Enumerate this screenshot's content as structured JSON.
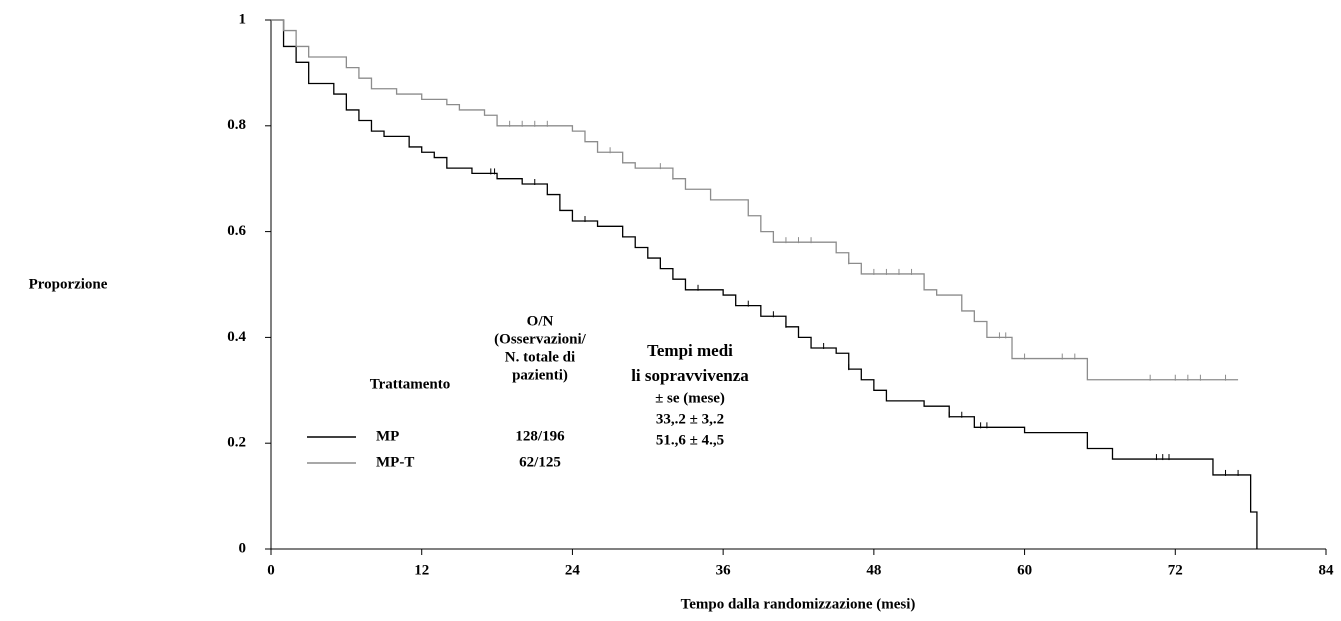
{
  "chart_data": {
    "type": "line",
    "step": "post",
    "y_label": "Proporzione",
    "x_label": "Tempo dalla randomizzazione (mesi)",
    "xlim": [
      0,
      84
    ],
    "xticks": [
      0,
      12,
      24,
      36,
      48,
      60,
      72,
      84
    ],
    "ylim": [
      0,
      1
    ],
    "yticks": [
      0,
      0.2,
      0.4,
      0.6,
      0.8,
      1
    ],
    "series": [
      {
        "name": "MP",
        "color": "#000000",
        "x": [
          0,
          1,
          2,
          3,
          5,
          6,
          7,
          8,
          9,
          11,
          12,
          13,
          14,
          16,
          18,
          20,
          22,
          23,
          24,
          26,
          28,
          29,
          30,
          31,
          32,
          33,
          36,
          37,
          39,
          41,
          42,
          43,
          45,
          46,
          47,
          48,
          49,
          52,
          54,
          56,
          60,
          65,
          67,
          75,
          78,
          78.5,
          78.5
        ],
        "values": [
          1,
          0.95,
          0.92,
          0.88,
          0.86,
          0.83,
          0.81,
          0.79,
          0.78,
          0.76,
          0.75,
          0.74,
          0.72,
          0.71,
          0.7,
          0.69,
          0.67,
          0.64,
          0.62,
          0.61,
          0.59,
          0.57,
          0.55,
          0.53,
          0.51,
          0.49,
          0.48,
          0.46,
          0.44,
          0.42,
          0.4,
          0.38,
          0.37,
          0.34,
          0.32,
          0.3,
          0.28,
          0.27,
          0.25,
          0.23,
          0.22,
          0.19,
          0.17,
          0.14,
          0.07,
          0.07,
          0
        ],
        "censor_x": [
          17.5,
          17.8,
          21,
          25,
          34,
          38,
          40,
          41,
          44,
          46,
          54,
          55,
          56.5,
          57,
          70.5,
          71,
          71.5,
          76,
          77
        ]
      },
      {
        "name": "MP-T",
        "color": "#8c8c8c",
        "x": [
          0,
          1,
          2,
          3,
          6,
          7,
          8,
          10,
          12,
          14,
          15,
          17,
          18,
          24,
          25,
          26,
          28,
          29,
          32,
          33,
          35,
          38,
          39,
          40,
          45,
          46,
          47,
          52,
          53,
          55,
          56,
          57,
          59,
          65,
          77
        ],
        "values": [
          1,
          0.98,
          0.95,
          0.93,
          0.91,
          0.89,
          0.87,
          0.86,
          0.85,
          0.84,
          0.83,
          0.82,
          0.8,
          0.79,
          0.77,
          0.75,
          0.73,
          0.72,
          0.7,
          0.68,
          0.66,
          0.63,
          0.6,
          0.58,
          0.56,
          0.54,
          0.52,
          0.49,
          0.48,
          0.45,
          0.43,
          0.4,
          0.36,
          0.32,
          0.32
        ],
        "censor_x": [
          19,
          20,
          21,
          22,
          27,
          31,
          32,
          41,
          42,
          43,
          46,
          48,
          49,
          50,
          51,
          58,
          58.5,
          60,
          63,
          64,
          70,
          72,
          73,
          74,
          76
        ]
      }
    ]
  },
  "legend_table": {
    "headers": [
      "Trattamento",
      "O/N",
      "(Osservazioni/",
      "N. totale di",
      "pazienti)",
      "Tempi medi",
      "li sopravvivenza",
      "± se (mese)"
    ],
    "rows": [
      {
        "o_n": "128/196",
        "median": "33,.2 ± 3,.2"
      },
      {
        "o_n": "62/125",
        "median": "51.,6 ± 4.,5"
      }
    ]
  }
}
